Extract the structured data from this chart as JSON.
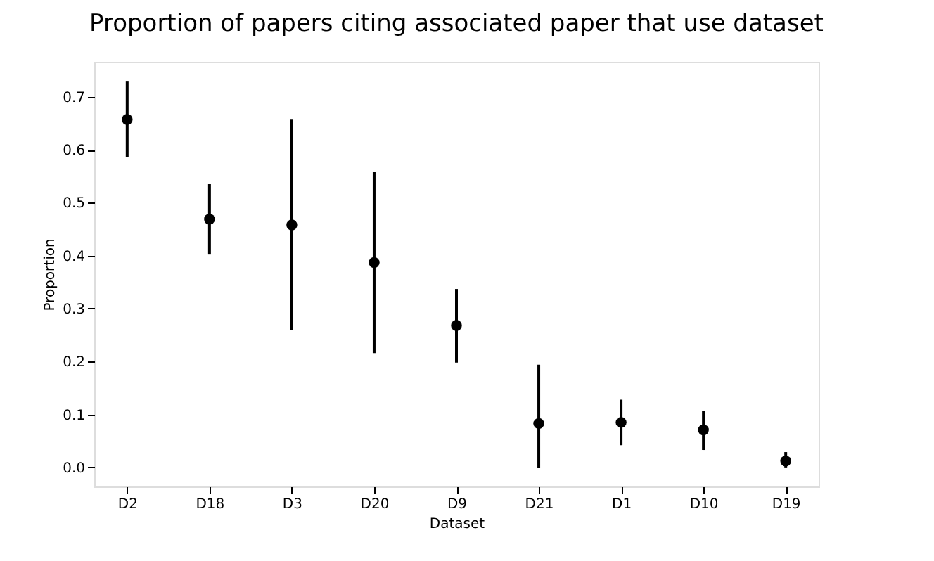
{
  "chart_data": {
    "type": "scatter",
    "title": "Proportion of papers citing associated paper that use dataset",
    "xlabel": "Dataset",
    "ylabel": "Proportion",
    "categories": [
      "D2",
      "D18",
      "D3",
      "D20",
      "D9",
      "D21",
      "D1",
      "D10",
      "D19"
    ],
    "values": [
      0.657,
      0.469,
      0.458,
      0.387,
      0.268,
      0.083,
      0.085,
      0.071,
      0.012
    ],
    "errors": [
      [
        0.586,
        0.73
      ],
      [
        0.402,
        0.535
      ],
      [
        0.259,
        0.658
      ],
      [
        0.216,
        0.559
      ],
      [
        0.198,
        0.337
      ],
      [
        0.0,
        0.194
      ],
      [
        0.042,
        0.128
      ],
      [
        0.033,
        0.107
      ],
      [
        0.0,
        0.029
      ]
    ],
    "color": "#000000",
    "marker": "circle",
    "ylim": [
      -0.036,
      0.766
    ],
    "yticks": [
      {
        "value": 0,
        "label": "0.0"
      },
      0.1,
      0.2,
      0.3,
      0.4,
      0.5,
      0.6,
      0.7
    ],
    "grid": false
  }
}
